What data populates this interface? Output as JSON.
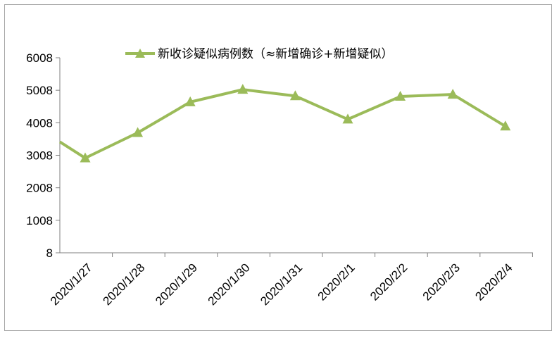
{
  "chart_data": {
    "type": "line",
    "title": "",
    "xlabel": "",
    "ylabel": "",
    "categories": [
      "2020/1/27",
      "2020/1/28",
      "2020/1/29",
      "2020/1/30",
      "2020/1/31",
      "2020/2/1",
      "2020/2/2",
      "2020/2/3",
      "2020/2/4"
    ],
    "y_ticks": [
      "8",
      "1008",
      "2008",
      "3008",
      "4008",
      "5008",
      "6008"
    ],
    "ylim": [
      8,
      6008
    ],
    "series": [
      {
        "name": "新收诊疑似病例数（≈新增确诊+新增疑似）",
        "color": "#9bbb59",
        "marker": "triangle",
        "values": [
          2922,
          3701,
          4646,
          5030,
          4832,
          4115,
          4816,
          4880,
          3901
        ],
        "entry_value": 3420
      }
    ],
    "legend": "top-center",
    "grid": false
  }
}
